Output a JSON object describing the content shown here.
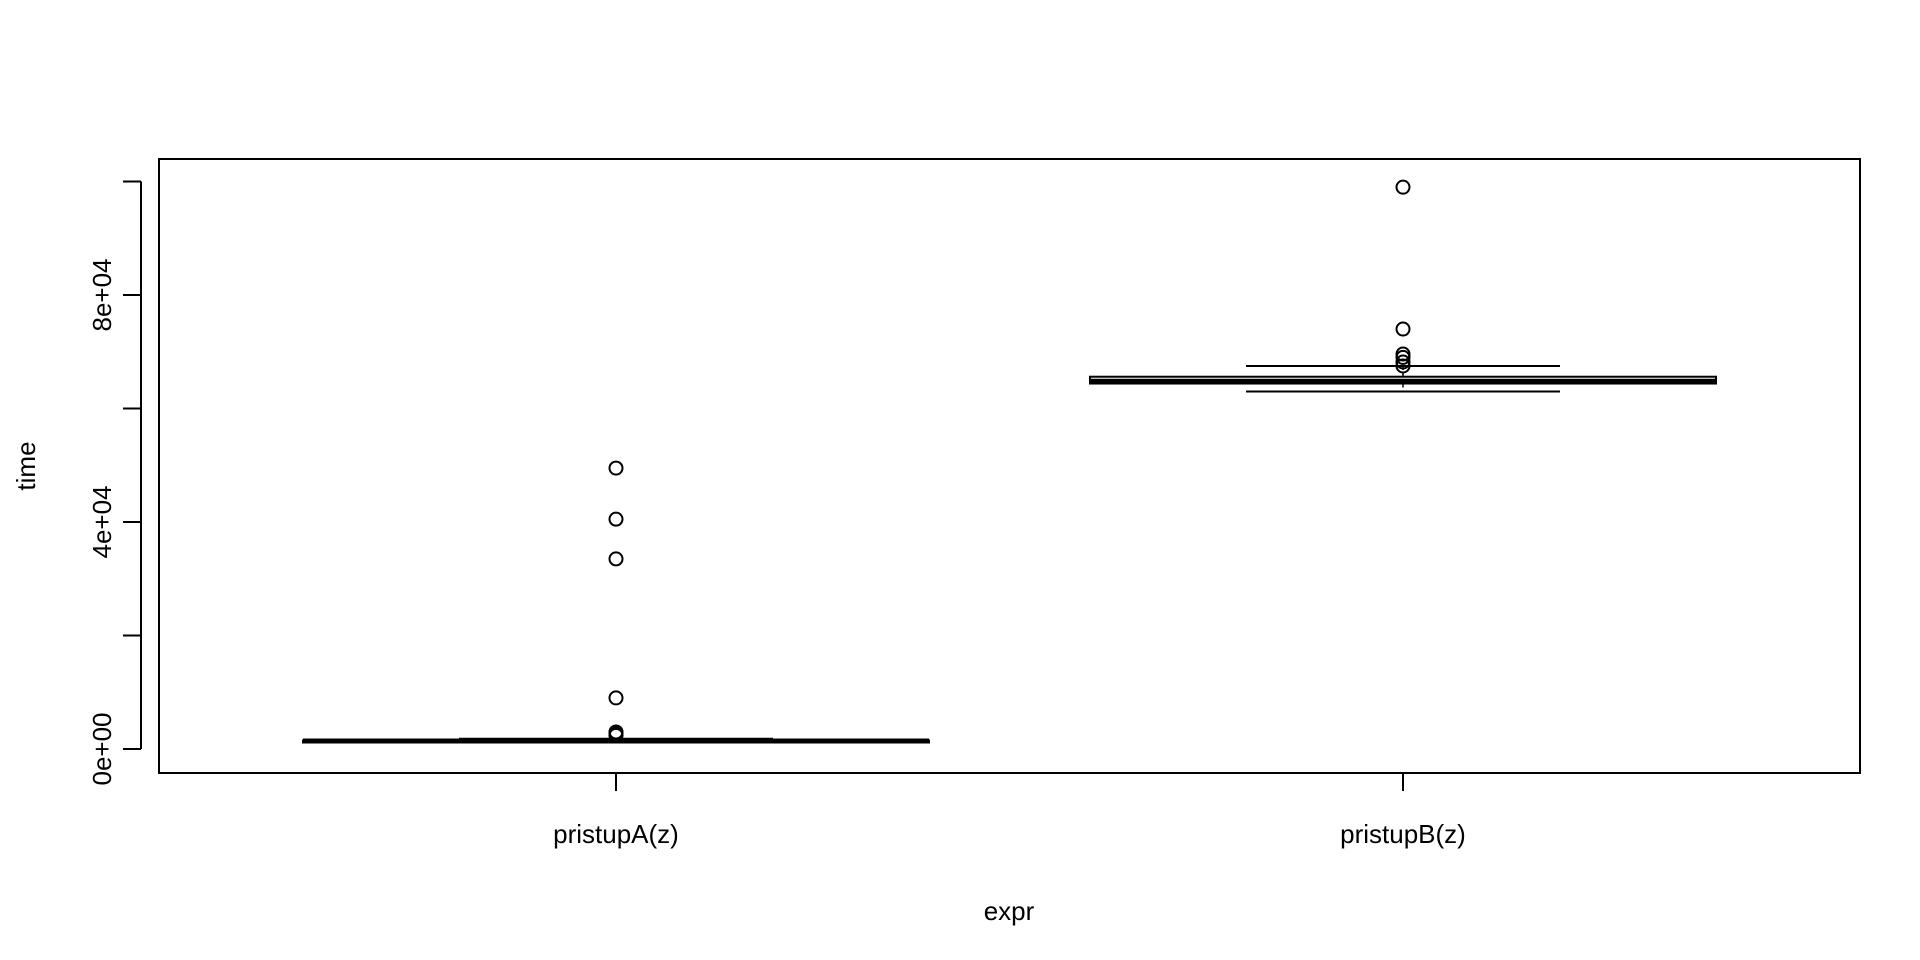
{
  "chart_data": {
    "type": "boxplot",
    "title": "",
    "xlabel": "expr",
    "ylabel": "time",
    "ylim": [
      -4000,
      104000
    ],
    "yticks": [
      0,
      20000,
      40000,
      60000,
      80000,
      100000
    ],
    "yticklabels": [
      "0e+00",
      "",
      "4e+04",
      "",
      "8e+04",
      ""
    ],
    "categories": [
      "pristupA(z)",
      "pristupB(z)"
    ],
    "boxes": [
      {
        "category": "pristupA(z)",
        "whisker_low": 1300,
        "q1": 1300,
        "median": 1400,
        "q3": 1500,
        "whisker_high": 1800,
        "outliers": [
          2400,
          2700,
          3000,
          9000,
          33500,
          40500,
          49500
        ]
      },
      {
        "category": "pristupB(z)",
        "whisker_low": 63000,
        "q1": 64400,
        "median": 64800,
        "q3": 65600,
        "whisker_high": 67500,
        "outliers": [
          67500,
          68200,
          69000,
          69600,
          74000,
          99000
        ]
      }
    ],
    "grid": false,
    "legend": "none"
  }
}
